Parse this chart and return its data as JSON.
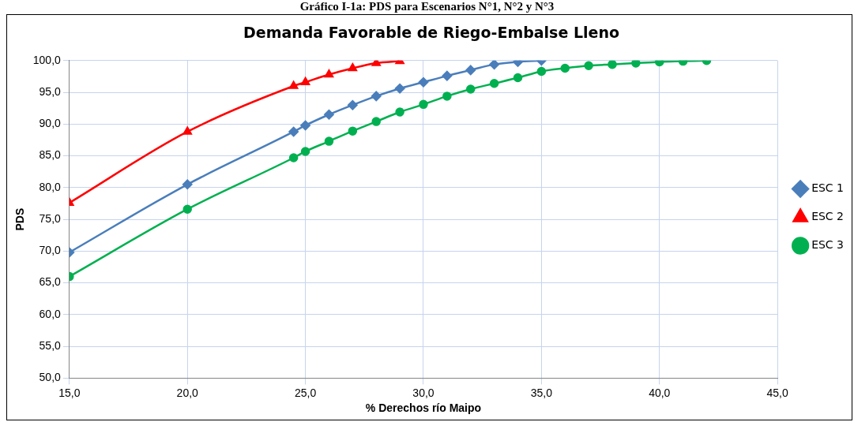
{
  "chart_data": {
    "type": "line",
    "title": "Demanda Favorable de Riego-Embalse Lleno",
    "xlabel": "% Derechos río Maipo",
    "ylabel": "PDS",
    "annotations": [
      "Gráfico I-1a: PDS para Escenarios N°1, N°2 y N°3"
    ],
    "series": [
      {
        "name": "ESC 1",
        "color": "#4a7ebb",
        "marker": "diamond",
        "x": [
          15,
          20,
          24.5,
          25,
          26,
          27,
          28,
          29,
          30,
          31,
          32,
          33,
          34,
          35
        ],
        "values": [
          69.8,
          80.5,
          88.8,
          89.8,
          91.5,
          93.0,
          94.4,
          95.6,
          96.6,
          97.6,
          98.5,
          99.4,
          99.8,
          100.0
        ]
      },
      {
        "name": "ESC 2",
        "color": "#ff0000",
        "marker": "triangle",
        "x": [
          15,
          20,
          24.5,
          25,
          26,
          27,
          28,
          29
        ],
        "values": [
          77.6,
          88.8,
          96.0,
          96.6,
          97.8,
          98.8,
          99.6,
          99.9
        ]
      },
      {
        "name": "ESC 3",
        "color": "#00b050",
        "marker": "circle",
        "x": [
          15,
          20,
          24.5,
          25,
          26,
          27,
          28,
          29,
          30,
          31,
          32,
          33,
          34,
          35,
          36,
          37,
          38,
          39,
          40,
          41,
          42
        ],
        "values": [
          66.0,
          76.6,
          84.7,
          85.7,
          87.3,
          88.9,
          90.4,
          91.9,
          93.1,
          94.4,
          95.5,
          96.4,
          97.3,
          98.3,
          98.8,
          99.2,
          99.4,
          99.6,
          99.8,
          99.9,
          100.0
        ]
      }
    ],
    "xlim": [
      15,
      45
    ],
    "xticks": [
      {
        "value": 15,
        "label": "15,0"
      },
      {
        "value": 20,
        "label": "20,0"
      },
      {
        "value": 25,
        "label": "25,0"
      },
      {
        "value": 30,
        "label": "30,0"
      },
      {
        "value": 35,
        "label": "35,0"
      },
      {
        "value": 40,
        "label": "40,0"
      },
      {
        "value": 45,
        "label": "45,0"
      }
    ],
    "ylim": [
      50,
      100
    ],
    "yticks": [
      {
        "value": 50,
        "label": "50,0"
      },
      {
        "value": 55,
        "label": "55,0"
      },
      {
        "value": 60,
        "label": "60,0"
      },
      {
        "value": 65,
        "label": "65,0"
      },
      {
        "value": 70,
        "label": "70,0"
      },
      {
        "value": 75,
        "label": "75,0"
      },
      {
        "value": 80,
        "label": "80,0"
      },
      {
        "value": 85,
        "label": "85,0"
      },
      {
        "value": 90,
        "label": "90,0"
      },
      {
        "value": 95,
        "label": "95,0"
      },
      {
        "value": 100,
        "label": "100,0"
      }
    ],
    "grid": true,
    "legend": "right",
    "line_style": "solid"
  }
}
